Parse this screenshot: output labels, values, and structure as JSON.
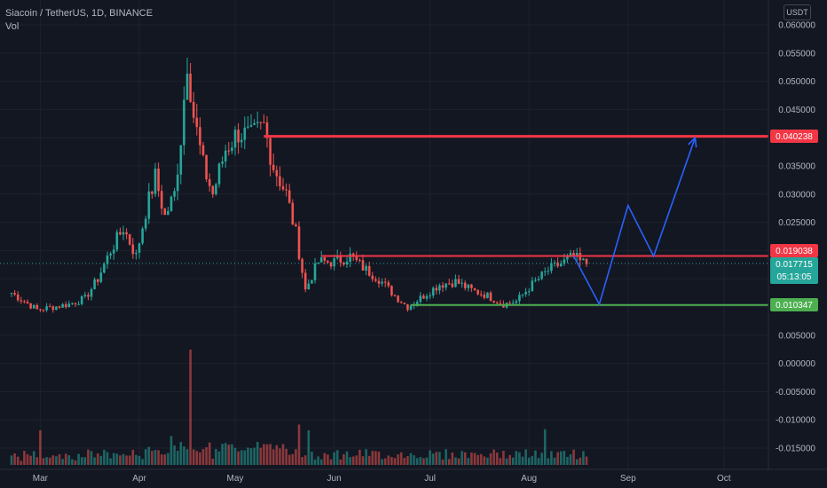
{
  "header": {
    "pair": "Siacoin / TetherUS, 1D, BINANCE",
    "volume_label": "Vol",
    "currency": "USDT"
  },
  "price_tags": {
    "resistance_high": "0.040238",
    "resistance_mid": "0.019038",
    "last_price": "0.017715",
    "countdown": "05:13:05",
    "support": "0.010347"
  },
  "colors": {
    "background": "#131722",
    "up": "#26a69a",
    "down": "#ef5350",
    "red_level": "#f23645",
    "green_level": "#4caf50",
    "projection": "#2962ff"
  },
  "chart_data": {
    "type": "candlestick",
    "title": "Siacoin / TetherUS, 1D, BINANCE",
    "x_axis_ticks": [
      "Mar",
      "Apr",
      "May",
      "Jun",
      "Jul",
      "Aug",
      "Sep",
      "Oct"
    ],
    "y_axis_ticks": [
      "0.060000",
      "0.055000",
      "0.050000",
      "0.045000",
      "0.040000",
      "0.035000",
      "0.030000",
      "0.025000",
      "0.020000",
      "0.015000",
      "0.010000",
      "0.005000",
      "0.000000",
      "-0.005000",
      "-0.010000",
      "-0.015000"
    ],
    "ylim": [
      -0.0175,
      0.0625
    ],
    "grid": true,
    "price_path": [
      [
        "2021-02-20",
        0.0125
      ],
      [
        "2021-02-24",
        0.011
      ],
      [
        "2021-02-28",
        0.0095
      ],
      [
        "2021-03-05",
        0.01
      ],
      [
        "2021-03-10",
        0.0105
      ],
      [
        "2021-03-15",
        0.0115
      ],
      [
        "2021-03-19",
        0.015
      ],
      [
        "2021-03-23",
        0.02
      ],
      [
        "2021-03-27",
        0.024
      ],
      [
        "2021-03-31",
        0.019
      ],
      [
        "2021-04-03",
        0.027
      ],
      [
        "2021-04-06",
        0.033
      ],
      [
        "2021-04-09",
        0.026
      ],
      [
        "2021-04-12",
        0.03
      ],
      [
        "2021-04-14",
        0.04
      ],
      [
        "2021-04-16",
        0.054
      ],
      [
        "2021-04-18",
        0.044
      ],
      [
        "2021-04-21",
        0.035
      ],
      [
        "2021-04-24",
        0.03
      ],
      [
        "2021-04-28",
        0.038
      ],
      [
        "2021-05-02",
        0.041
      ],
      [
        "2021-05-06",
        0.04
      ],
      [
        "2021-05-10",
        0.042
      ],
      [
        "2021-05-13",
        0.035
      ],
      [
        "2021-05-17",
        0.03
      ],
      [
        "2021-05-20",
        0.023
      ],
      [
        "2021-05-23",
        0.013
      ],
      [
        "2021-05-27",
        0.018
      ],
      [
        "2021-06-01",
        0.018
      ],
      [
        "2021-06-06",
        0.019
      ],
      [
        "2021-06-10",
        0.017
      ],
      [
        "2021-06-15",
        0.015
      ],
      [
        "2021-06-20",
        0.012
      ],
      [
        "2021-06-24",
        0.01
      ],
      [
        "2021-06-29",
        0.012
      ],
      [
        "2021-07-04",
        0.014
      ],
      [
        "2021-07-09",
        0.0145
      ],
      [
        "2021-07-14",
        0.013
      ],
      [
        "2021-07-19",
        0.012
      ],
      [
        "2021-07-24",
        0.0105
      ],
      [
        "2021-07-28",
        0.011
      ],
      [
        "2021-08-02",
        0.014
      ],
      [
        "2021-08-07",
        0.0165
      ],
      [
        "2021-08-12",
        0.018
      ],
      [
        "2021-08-15",
        0.019
      ],
      [
        "2021-08-17",
        0.018
      ],
      [
        "2021-08-19",
        0.0177
      ]
    ],
    "volume_spikes": [
      [
        "2021-03-01",
        3
      ],
      [
        "2021-03-12",
        0.4
      ],
      [
        "2021-04-11",
        2.5
      ],
      [
        "2021-04-17",
        10
      ],
      [
        "2021-05-08",
        2.0
      ],
      [
        "2021-05-21",
        3.5
      ],
      [
        "2021-05-24",
        3.0
      ],
      [
        "2021-08-06",
        3.1
      ]
    ],
    "horizontal_levels": [
      {
        "value": 0.040238,
        "label": "0.040238",
        "color": "red",
        "from": "2021-05-10"
      },
      {
        "value": 0.019038,
        "label": "0.019038",
        "color": "red",
        "from": "2021-05-28"
      },
      {
        "value": 0.010347,
        "label": "0.010347",
        "color": "green",
        "from": "2021-06-25"
      }
    ],
    "projection_path": [
      [
        "2021-08-15",
        0.019
      ],
      [
        "2021-08-23",
        0.0105
      ],
      [
        "2021-09-01",
        0.028
      ],
      [
        "2021-09-09",
        0.019
      ],
      [
        "2021-09-22",
        0.04
      ]
    ],
    "last_price": 0.017715
  }
}
